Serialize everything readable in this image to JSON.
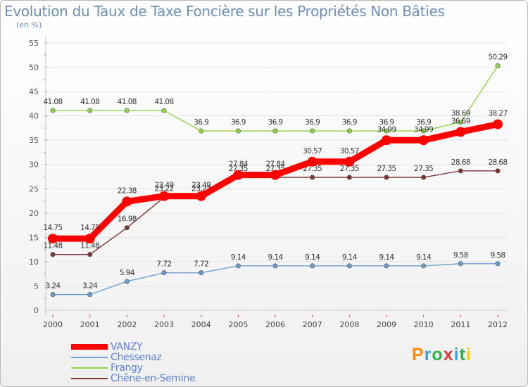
{
  "header": {
    "title": "Evolution du Taux de Taxe Foncière sur les Propriétés Non Bâties",
    "unit": "(en %)"
  },
  "logo": {
    "text": "Proxiti",
    "letter_colors": [
      "#ff8a00",
      "#36a3d9",
      "#2eb04a",
      "#e23a3a",
      "#36a3d9",
      "#2eb04a",
      "#ffcc00"
    ]
  },
  "chart_data": {
    "type": "line",
    "title": "Evolution du Taux de Taxe Foncière sur les Propriétés Non Bâties",
    "ylabel": "(en %)",
    "xlabel": "",
    "ylim": [
      0,
      55
    ],
    "yticks": [
      0,
      5,
      10,
      15,
      20,
      25,
      30,
      35,
      40,
      45,
      50,
      55
    ],
    "categories": [
      "2000",
      "2001",
      "2002",
      "2003",
      "2004",
      "2005",
      "2006",
      "2007",
      "2008",
      "2009",
      "2010",
      "2011",
      "2012"
    ],
    "series": [
      {
        "name": "Frangy",
        "color": "#8fd444",
        "values": [
          41.08,
          41.08,
          41.08,
          41.08,
          36.9,
          36.9,
          36.9,
          36.9,
          36.9,
          36.9,
          36.9,
          38.69,
          50.29
        ]
      },
      {
        "name": "Chessenaz",
        "color": "#6e9ed0",
        "values": [
          3.24,
          3.24,
          5.94,
          7.72,
          7.72,
          9.14,
          9.14,
          9.14,
          9.14,
          9.14,
          9.14,
          9.58,
          9.58
        ]
      },
      {
        "name": "Chêne-en-Semine",
        "color": "#7a3535",
        "values": [
          11.48,
          11.48,
          16.98,
          23.22,
          23.22,
          27.35,
          27.35,
          27.35,
          27.35,
          27.35,
          27.35,
          28.68,
          28.68
        ]
      },
      {
        "name": "VANZY",
        "color": "#ff0000",
        "values": [
          14.75,
          14.75,
          22.38,
          23.49,
          23.49,
          27.84,
          27.84,
          30.57,
          30.57,
          34.99,
          34.99,
          36.69,
          38.27
        ]
      }
    ],
    "legend_order": [
      "VANZY",
      "Chessenaz",
      "Frangy",
      "Chêne-en-Semine"
    ],
    "legend_position": "bottom-left"
  }
}
